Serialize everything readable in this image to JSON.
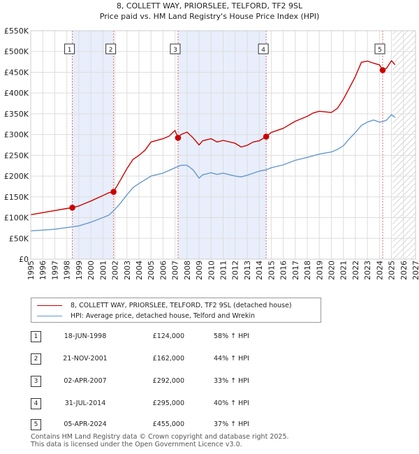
{
  "chart_data": {
    "type": "line",
    "title": "8, COLLETT WAY, PRIORSLEE, TELFORD, TF2 9SL",
    "subtitle": "Price paid vs. HM Land Registry's House Price Index (HPI)",
    "xlim": [
      1995,
      2027
    ],
    "ylim": [
      0,
      550000
    ],
    "x_ticks": [
      "1995",
      "1996",
      "1997",
      "1998",
      "1999",
      "2000",
      "2001",
      "2002",
      "2003",
      "2004",
      "2005",
      "2006",
      "2007",
      "2008",
      "2009",
      "2010",
      "2011",
      "2012",
      "2013",
      "2014",
      "2015",
      "2016",
      "2017",
      "2018",
      "2019",
      "2020",
      "2021",
      "2022",
      "2023",
      "2024",
      "2025",
      "2026",
      "2027"
    ],
    "y_ticks": [
      {
        "value": 0,
        "label": "£0"
      },
      {
        "value": 50000,
        "label": "£50K"
      },
      {
        "value": 100000,
        "label": "£100K"
      },
      {
        "value": 150000,
        "label": "£150K"
      },
      {
        "value": 200000,
        "label": "£200K"
      },
      {
        "value": 250000,
        "label": "£250K"
      },
      {
        "value": 300000,
        "label": "£300K"
      },
      {
        "value": 350000,
        "label": "£350K"
      },
      {
        "value": 400000,
        "label": "£400K"
      },
      {
        "value": 450000,
        "label": "£450K"
      },
      {
        "value": 500000,
        "label": "£500K"
      },
      {
        "value": 550000,
        "label": "£550K"
      }
    ],
    "forecast_from": 2025.1,
    "shaded_periods": [
      [
        1998.46,
        2001.89
      ],
      [
        2007.25,
        2014.58
      ]
    ],
    "series": [
      {
        "name": "8, COLLETT WAY, PRIORSLEE, TELFORD, TF2 9SL (detached house)",
        "color": "#cc0000",
        "x": [
          1995.0,
          1996.0,
          1997.0,
          1998.0,
          1998.46,
          1999.0,
          2000.0,
          2001.0,
          2001.5,
          2001.89,
          2002.5,
          2003.0,
          2003.5,
          2004.0,
          2004.5,
          2005.0,
          2006.0,
          2006.5,
          2007.0,
          2007.25,
          2007.5,
          2008.0,
          2008.5,
          2009.0,
          2009.3,
          2010.0,
          2010.5,
          2011.0,
          2012.0,
          2012.5,
          2013.0,
          2013.5,
          2014.0,
          2014.58,
          2015.0,
          2016.0,
          2017.0,
          2018.0,
          2018.5,
          2019.0,
          2020.0,
          2020.5,
          2021.0,
          2021.5,
          2022.0,
          2022.5,
          2023.0,
          2023.5,
          2024.0,
          2024.27,
          2024.6,
          2025.0,
          2025.3
        ],
        "y": [
          107000,
          112000,
          117000,
          122000,
          124000,
          128000,
          140000,
          153000,
          160000,
          162000,
          192000,
          218000,
          240000,
          250000,
          262000,
          282000,
          290000,
          296000,
          310000,
          292000,
          300000,
          306000,
          292000,
          275000,
          285000,
          290000,
          282000,
          286000,
          279000,
          270000,
          274000,
          282000,
          285000,
          295000,
          305000,
          315000,
          332000,
          344000,
          352000,
          356000,
          353000,
          363000,
          385000,
          412000,
          440000,
          474000,
          477000,
          472000,
          468000,
          455000,
          460000,
          478000,
          468000
        ]
      },
      {
        "name": "HPI: Average price, detached house, Telford and Wrekin",
        "color": "#6699cc",
        "x": [
          1995.0,
          1996.0,
          1997.0,
          1998.0,
          1999.0,
          2000.0,
          2001.0,
          2001.5,
          2002.0,
          2002.5,
          2003.0,
          2003.5,
          2004.0,
          2005.0,
          2006.0,
          2007.0,
          2007.5,
          2008.0,
          2008.5,
          2009.0,
          2009.3,
          2010.0,
          2010.5,
          2011.0,
          2012.0,
          2012.5,
          2013.0,
          2014.0,
          2014.58,
          2015.0,
          2016.0,
          2017.0,
          2018.0,
          2019.0,
          2020.0,
          2020.5,
          2021.0,
          2021.5,
          2022.0,
          2022.5,
          2023.0,
          2023.5,
          2024.0,
          2024.27,
          2024.6,
          2025.0,
          2025.3
        ],
        "y": [
          68000,
          70000,
          72000,
          76000,
          80000,
          89000,
          100000,
          106000,
          120000,
          136000,
          155000,
          172000,
          182000,
          200000,
          207000,
          220000,
          226000,
          226000,
          215000,
          195000,
          203000,
          208000,
          204000,
          207000,
          200000,
          198000,
          202000,
          212000,
          215000,
          220000,
          227000,
          238000,
          245000,
          253000,
          258000,
          264000,
          273000,
          290000,
          305000,
          322000,
          330000,
          335000,
          330000,
          331000,
          335000,
          348000,
          341000
        ]
      }
    ],
    "sales": [
      {
        "label": "1",
        "x": 1998.46,
        "y": 124000
      },
      {
        "label": "2",
        "x": 2001.89,
        "y": 162000
      },
      {
        "label": "3",
        "x": 2007.25,
        "y": 292000
      },
      {
        "label": "4",
        "x": 2014.58,
        "y": 295000
      },
      {
        "label": "5",
        "x": 2024.27,
        "y": 455000
      }
    ]
  },
  "legend": {
    "property": "8, COLLETT WAY, PRIORSLEE, TELFORD, TF2 9SL (detached house)",
    "hpi": "HPI: Average price, detached house, Telford and Wrekin"
  },
  "table": [
    {
      "num": "1",
      "date": "18-JUN-1998",
      "price": "£124,000",
      "hpi": "58% ↑ HPI"
    },
    {
      "num": "2",
      "date": "21-NOV-2001",
      "price": "£162,000",
      "hpi": "44% ↑ HPI"
    },
    {
      "num": "3",
      "date": "02-APR-2007",
      "price": "£292,000",
      "hpi": "33% ↑ HPI"
    },
    {
      "num": "4",
      "date": "31-JUL-2014",
      "price": "£295,000",
      "hpi": "40% ↑ HPI"
    },
    {
      "num": "5",
      "date": "05-APR-2024",
      "price": "£455,000",
      "hpi": "37% ↑ HPI"
    }
  ],
  "footer": {
    "line1": "Contains HM Land Registry data © Crown copyright and database right 2025.",
    "line2": "This data is licensed under the Open Government Licence v3.0."
  }
}
